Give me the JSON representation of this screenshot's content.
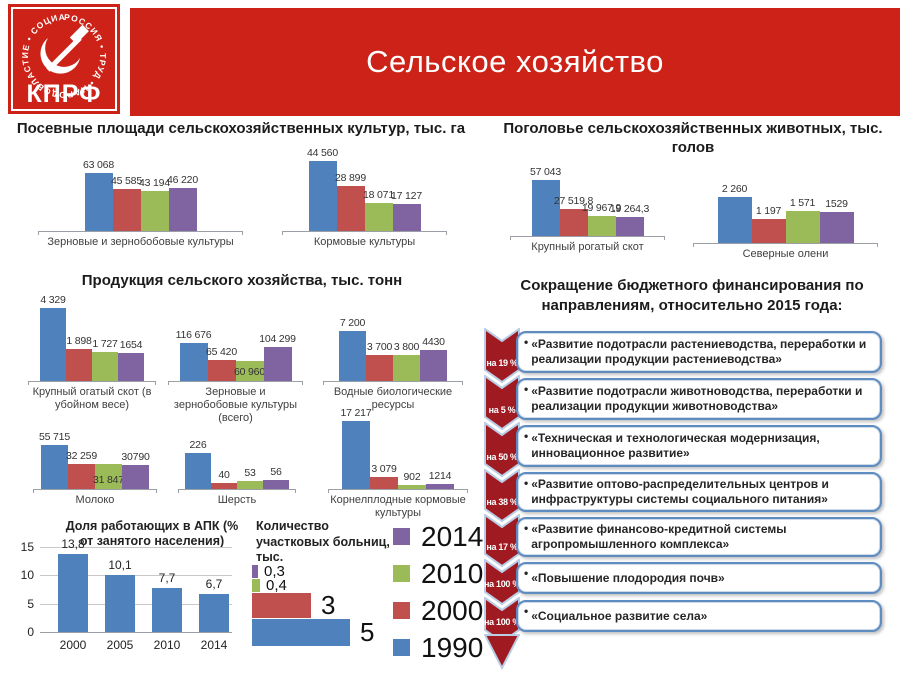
{
  "header": {
    "title": "Сельское хозяйство",
    "logo": {
      "text": "КПРФ",
      "ring_text": "РОССИЯ • ТРУД • НАРОДОВЛАСТИЕ • СОЦИАЛИЗМ"
    }
  },
  "colors": {
    "brand_red": "#cd2217",
    "series": [
      "#4f81bd",
      "#c0504d",
      "#9bbb59",
      "#8064a2"
    ],
    "chevron_red": "#a01a22",
    "chevron_border": "#b9cde5",
    "box_border": "#5f8cc0"
  },
  "legend": {
    "items": [
      {
        "label": "2014",
        "color": "#8064a2"
      },
      {
        "label": "2010",
        "color": "#9bbb59"
      },
      {
        "label": "2000",
        "color": "#c0504d"
      },
      {
        "label": "1990",
        "color": "#4f81bd"
      }
    ]
  },
  "chart_data": [
    {
      "type": "bar",
      "title": "Посевные площади сельскохозяйственных культур, тыс. га",
      "series_years": [
        "1990",
        "2000",
        "2010",
        "2014"
      ],
      "groups": [
        {
          "category": "Зерновые и зернобобовые культуры",
          "values": [
            63068,
            45585,
            43194,
            46220
          ],
          "labels": [
            "63 068",
            "45 585",
            "43 194",
            "46 220"
          ]
        },
        {
          "category": "Кормовые культуры",
          "values": [
            44560,
            28899,
            18071,
            17127
          ],
          "labels": [
            "44 560",
            "28 899",
            "18 071",
            "17 127"
          ]
        }
      ]
    },
    {
      "type": "bar",
      "title": "Поголовье сельскохозяйственных животных, тыс. голов",
      "series_years": [
        "1990",
        "2000",
        "2010",
        "2014"
      ],
      "groups": [
        {
          "category": "Крупный рогатый скот",
          "values": [
            57043,
            27519.8,
            19967.9,
            19264.3
          ],
          "labels": [
            "57 043",
            "27 519,8",
            "19 967,9",
            "19 264,3"
          ]
        },
        {
          "category": "Северные олени",
          "values": [
            2260,
            1197,
            1571,
            1529
          ],
          "labels": [
            "2 260",
            "1 197",
            "1 571",
            "1529"
          ]
        }
      ]
    },
    {
      "type": "bar",
      "title": "Продукция сельского хозяйства, тыс. тонн",
      "series_years": [
        "1990",
        "2000",
        "2010",
        "2014"
      ],
      "groups": [
        {
          "category": "Крупный огатый скот (в убойном весе)",
          "values": [
            4329,
            1898,
            1727,
            1654
          ],
          "labels": [
            "4 329",
            "1 898",
            "1 727",
            "1654"
          ]
        },
        {
          "category": "Зерновые и зернобобовые культуры (всего)",
          "values": [
            116676,
            65420,
            60960,
            104299
          ],
          "labels": [
            "116 676",
            "65 420",
            "60 960",
            "104 299"
          ],
          "inside": [
            2
          ]
        },
        {
          "category": "Водные биологические ресурсы",
          "values": [
            7200,
            3700,
            3800,
            4430
          ],
          "labels": [
            "7 200",
            "3 700",
            "3 800",
            "4430"
          ],
          "wrap": [
            2
          ]
        },
        {
          "category": "Молоко",
          "values": [
            55715,
            32259,
            31847,
            30790
          ],
          "labels": [
            "55 715",
            "32 259",
            "31 847",
            "30790"
          ],
          "inside": [
            2
          ]
        },
        {
          "category": "Шерсть",
          "values": [
            226,
            40,
            53,
            56
          ],
          "labels": [
            "226",
            "40",
            "53",
            "56"
          ]
        },
        {
          "category": "Корнелплодные кормовые культуры",
          "values": [
            17217,
            3079,
            902,
            1214
          ],
          "labels": [
            "17 217",
            "3 079",
            "902",
            "1214"
          ]
        }
      ]
    },
    {
      "type": "bar",
      "title": "Доля работающих в АПК (% от занятого населения)",
      "categories": [
        "2000",
        "2005",
        "2010",
        "2014"
      ],
      "values": [
        13.8,
        10.1,
        7.7,
        6.7
      ],
      "labels": [
        "13,8",
        "10,1",
        "7,7",
        "6,7"
      ],
      "yticks": [
        "0",
        "5",
        "10",
        "15"
      ],
      "ylim": [
        0,
        15
      ]
    },
    {
      "type": "bar-horizontal",
      "title": "Количество участковых больниц, тыс.",
      "rows": [
        {
          "year": "2014",
          "value": 0.3,
          "label": "0,3",
          "color": "#8064a2"
        },
        {
          "year": "2010",
          "value": 0.4,
          "label": "0,4",
          "color": "#9bbb59"
        },
        {
          "year": "2000",
          "value": 3,
          "label": "3",
          "color": "#c0504d",
          "big": true
        },
        {
          "year": "1990",
          "value": 5,
          "label": "5",
          "color": "#4f81bd",
          "big": true
        }
      ]
    }
  ],
  "reduction": {
    "title": "Сокращение бюджетного финансирования по направлениям, относительно 2015 года:",
    "bullet": "•",
    "items": [
      {
        "percent": "на 19 %",
        "text": "«Развитие подотрасли растениеводства, переработки и реализации продукции растениеводства»"
      },
      {
        "percent": "на 5 %",
        "text": "«Развитие подотрасли животноводства, переработки и реализации продукции животноводства»"
      },
      {
        "percent": "на 50 %",
        "text": "«Техническая и технологическая модернизация, инновационное  развитие»"
      },
      {
        "percent": "на 38 %",
        "text": "«Развитие оптово-распределительных центров и инфраструктуры системы социального питания»"
      },
      {
        "percent": "на 17 %",
        "text": "«Развитие финансово-кредитной системы агропромышленного комплекса»"
      },
      {
        "percent": "на 100 %",
        "text": "«Повышение плодородия почв»"
      },
      {
        "percent": "на 100 %",
        "text": "«Социальное развитие села»"
      }
    ]
  }
}
